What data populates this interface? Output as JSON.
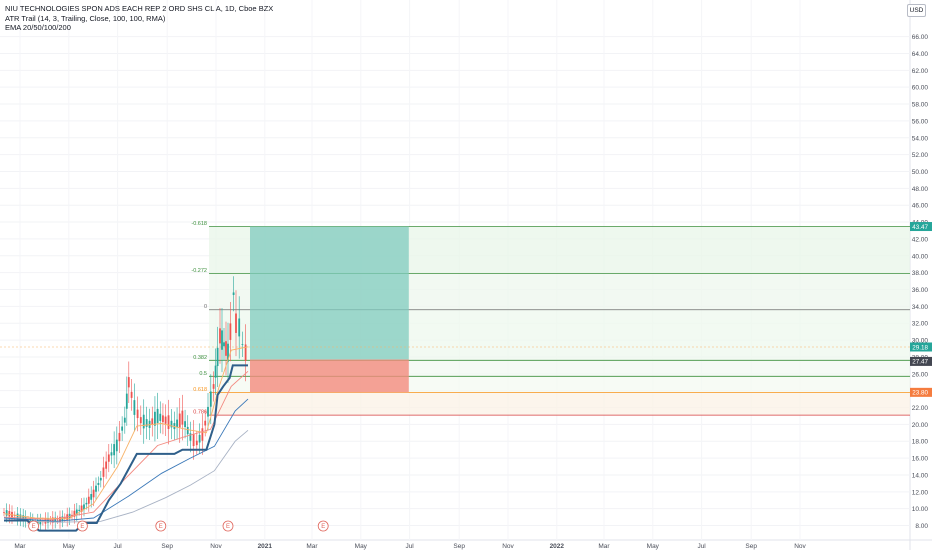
{
  "header": {
    "title": "NIU TECHNOLOGIES SPON ADS EACH REP 2 ORD SHS CL A, 1D, Cboe BZX",
    "indicator_atr": "ATR Trail (14, 3, Trailing, Close, 100, 100, RMA)",
    "indicator_ema": "EMA 20/50/100/200",
    "currency": "USD"
  },
  "chart_data": {
    "type": "line",
    "title": "NIU TECHNOLOGIES SPON ADS EACH REP 2 ORD SHS CL A, 1D, Cboe BZX",
    "xlabel": "",
    "ylabel": "",
    "ylim": [
      6,
      67
    ],
    "y_ticks": [
      8,
      10,
      12,
      14,
      16,
      18,
      20,
      22,
      24,
      26,
      28,
      30,
      32,
      34,
      36,
      38,
      40,
      42,
      44,
      46,
      48,
      50,
      52,
      54,
      56,
      58,
      60,
      62,
      64,
      66
    ],
    "x_ticks": [
      "Mar",
      "May",
      "Jul",
      "Sep",
      "Nov",
      "2021",
      "Mar",
      "May",
      "Jul",
      "Sep",
      "Nov",
      "2022",
      "Mar",
      "May",
      "Jul",
      "Sep",
      "Nov"
    ],
    "x_range": [
      "2020-02-10",
      "2022-12-31"
    ],
    "grid": true,
    "price_labels": [
      "43.47",
      "29.18",
      "27.47",
      "23.80"
    ],
    "current_price": 27.47,
    "fib_levels": [
      {
        "label": "-0.618",
        "value": 43.47,
        "color": "#3c8f3c"
      },
      {
        "label": "-0.272",
        "value": 37.9,
        "color": "#3c8f3c"
      },
      {
        "label": "0",
        "value": 33.6,
        "color": "#6d6d6d"
      },
      {
        "label": "0.382",
        "value": 27.6,
        "color": "#3c8f3c"
      },
      {
        "label": "0.5",
        "value": 25.7,
        "color": "#3c8f3c"
      },
      {
        "label": "0.618",
        "value": 23.8,
        "color": "#f7931a"
      },
      {
        "label": "0.786",
        "value": 21.1,
        "color": "#d63b3b"
      }
    ],
    "position_tool": {
      "start": "2020-12-01",
      "end": "2021-06-30",
      "entry": 27.7,
      "target": 43.47,
      "stop": 23.8,
      "profit_color": "#7fcbbd",
      "loss_color": "#f28b7d"
    },
    "earnings_markers": [
      "2020-03-18",
      "2020-05-18",
      "2020-08-24",
      "2020-11-16",
      "2021-03-15"
    ],
    "earnings_label": "E",
    "price_series": [
      [
        "2020-02-10",
        9.6
      ],
      [
        "2020-02-20",
        9.3
      ],
      [
        "2020-03-05",
        8.9
      ],
      [
        "2020-03-20",
        8.3
      ],
      [
        "2020-04-05",
        8.6
      ],
      [
        "2020-04-20",
        8.7
      ],
      [
        "2020-05-05",
        9.2
      ],
      [
        "2020-05-20",
        10.2
      ],
      [
        "2020-06-01",
        11.8
      ],
      [
        "2020-06-10",
        13.5
      ],
      [
        "2020-06-20",
        16.0
      ],
      [
        "2020-06-30",
        17.5
      ],
      [
        "2020-07-10",
        20.5
      ],
      [
        "2020-07-15",
        25.0
      ],
      [
        "2020-07-22",
        22.0
      ],
      [
        "2020-07-30",
        20.5
      ],
      [
        "2020-08-10",
        20.0
      ],
      [
        "2020-08-20",
        21.0
      ],
      [
        "2020-08-30",
        20.5
      ],
      [
        "2020-09-10",
        19.8
      ],
      [
        "2020-09-20",
        20.8
      ],
      [
        "2020-09-30",
        18.5
      ],
      [
        "2020-10-08",
        17.8
      ],
      [
        "2020-10-15",
        18.8
      ],
      [
        "2020-10-22",
        21.5
      ],
      [
        "2020-10-29",
        24.5
      ],
      [
        "2020-11-03",
        28.0
      ],
      [
        "2020-11-06",
        30.5
      ],
      [
        "2020-11-11",
        29.5
      ],
      [
        "2020-11-16",
        28.5
      ],
      [
        "2020-11-19",
        31.0
      ],
      [
        "2020-11-23",
        35.5
      ],
      [
        "2020-11-26",
        32.0
      ],
      [
        "2020-11-30",
        31.5
      ],
      [
        "2020-12-04",
        29.5
      ],
      [
        "2020-12-08",
        28.5
      ],
      [
        "2020-12-11",
        29.0
      ]
    ],
    "series": [
      {
        "name": "EMA 20",
        "color": "#f7b267",
        "values": [
          [
            "2020-02-10",
            9.4
          ],
          [
            "2020-03-20",
            8.9
          ],
          [
            "2020-05-01",
            8.8
          ],
          [
            "2020-06-01",
            10.6
          ],
          [
            "2020-07-01",
            15.0
          ],
          [
            "2020-07-25",
            19.8
          ],
          [
            "2020-08-25",
            20.1
          ],
          [
            "2020-09-25",
            19.4
          ],
          [
            "2020-10-20",
            19.0
          ],
          [
            "2020-11-05",
            24.5
          ],
          [
            "2020-11-20",
            28.8
          ],
          [
            "2020-12-11",
            29.2
          ]
        ]
      },
      {
        "name": "EMA 50",
        "color": "#f28b82",
        "values": [
          [
            "2020-02-10",
            9.0
          ],
          [
            "2020-04-10",
            8.7
          ],
          [
            "2020-06-01",
            9.6
          ],
          [
            "2020-07-10",
            13.5
          ],
          [
            "2020-08-20",
            17.5
          ],
          [
            "2020-09-25",
            18.6
          ],
          [
            "2020-10-25",
            19.4
          ],
          [
            "2020-11-20",
            24.5
          ],
          [
            "2020-12-11",
            26.3
          ]
        ]
      },
      {
        "name": "EMA 100",
        "color": "#3a78b8",
        "values": [
          [
            "2020-02-10",
            8.9
          ],
          [
            "2020-04-15",
            8.5
          ],
          [
            "2020-06-01",
            8.9
          ],
          [
            "2020-07-15",
            11.5
          ],
          [
            "2020-08-25",
            14.2
          ],
          [
            "2020-09-30",
            16.0
          ],
          [
            "2020-10-30",
            17.4
          ],
          [
            "2020-11-25",
            21.6
          ],
          [
            "2020-12-11",
            23.0
          ]
        ]
      },
      {
        "name": "EMA 200",
        "color": "#a8b2c4",
        "values": [
          [
            "2020-02-10",
            8.6
          ],
          [
            "2020-04-20",
            8.4
          ],
          [
            "2020-06-10",
            8.5
          ],
          [
            "2020-07-20",
            9.6
          ],
          [
            "2020-08-30",
            11.3
          ],
          [
            "2020-09-30",
            12.8
          ],
          [
            "2020-10-30",
            14.5
          ],
          [
            "2020-11-25",
            18.0
          ],
          [
            "2020-12-11",
            19.3
          ]
        ]
      },
      {
        "name": "ATR Trail",
        "color": "#2f5f8a",
        "values": [
          [
            "2020-02-10",
            8.6
          ],
          [
            "2020-03-10",
            8.6
          ],
          [
            "2020-03-25",
            7.4
          ],
          [
            "2020-05-10",
            7.4
          ],
          [
            "2020-05-20",
            8.3
          ],
          [
            "2020-06-05",
            8.3
          ],
          [
            "2020-06-20",
            11.0
          ],
          [
            "2020-07-05",
            13.0
          ],
          [
            "2020-07-25",
            16.5
          ],
          [
            "2020-09-10",
            16.5
          ],
          [
            "2020-09-20",
            17.0
          ],
          [
            "2020-10-20",
            17.0
          ],
          [
            "2020-10-30",
            20.0
          ],
          [
            "2020-11-03",
            23.5
          ],
          [
            "2020-11-10",
            24.5
          ],
          [
            "2020-11-18",
            25.5
          ],
          [
            "2020-11-22",
            27.0
          ],
          [
            "2020-12-11",
            27.0
          ]
        ]
      }
    ]
  }
}
